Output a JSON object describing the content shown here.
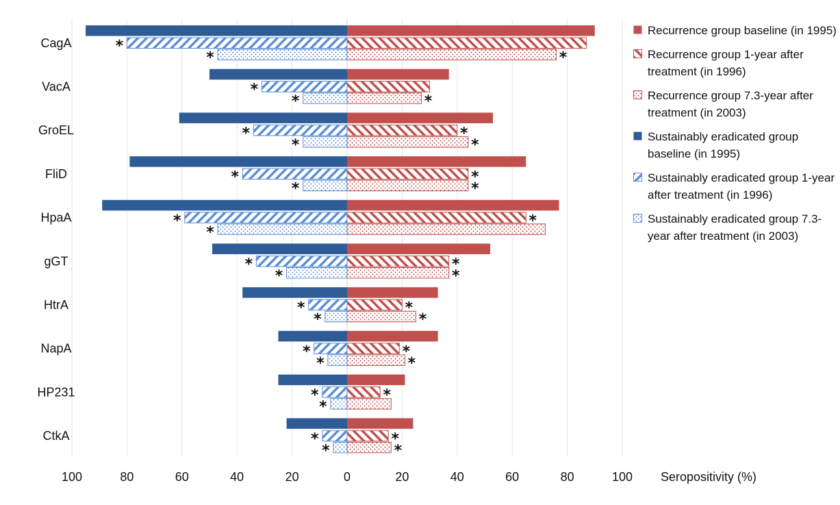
{
  "chart_data": {
    "type": "bar",
    "orientation": "horizontal-diverging",
    "categories": [
      "CagA",
      "VacA",
      "GroEL",
      "FliD",
      "HpaA",
      "gGT",
      "HtrA",
      "NapA",
      "HP231",
      "CtkA"
    ],
    "xlabel": "Seropositivity (%)",
    "xlim": [
      -100,
      100
    ],
    "ticks": [
      100,
      80,
      60,
      40,
      20,
      0,
      20,
      40,
      60,
      80,
      100
    ],
    "legend_position": "right",
    "grid": true,
    "series": [
      {
        "name": "Recurrence group baseline (in 1995)",
        "side": "right",
        "pattern": "solid",
        "color": "#c0504d",
        "values": [
          90,
          37,
          53,
          65,
          77,
          52,
          33,
          33,
          21,
          24
        ],
        "significant": [
          false,
          false,
          false,
          false,
          false,
          false,
          false,
          false,
          false,
          false
        ]
      },
      {
        "name": "Recurrence group 1-year after treatment (in 1996)",
        "side": "right",
        "pattern": "hatch",
        "color": "#c0504d",
        "values": [
          87,
          30,
          40,
          44,
          65,
          37,
          20,
          19,
          12,
          15
        ],
        "significant": [
          false,
          false,
          true,
          true,
          true,
          true,
          true,
          true,
          true,
          true
        ]
      },
      {
        "name": "Recurrence group 7.3-year after treatment (in 2003)",
        "side": "right",
        "pattern": "dots",
        "color": "#c0504d",
        "values": [
          76,
          27,
          44,
          44,
          72,
          37,
          25,
          21,
          16,
          16
        ],
        "significant": [
          true,
          true,
          true,
          true,
          false,
          true,
          true,
          true,
          false,
          true
        ]
      },
      {
        "name": "Sustainably eradicated group baseline (in 1995)",
        "side": "left",
        "pattern": "solid",
        "color": "#2f5c96",
        "values": [
          95,
          50,
          61,
          79,
          89,
          49,
          38,
          25,
          25,
          22
        ],
        "significant": [
          false,
          false,
          false,
          false,
          false,
          false,
          false,
          false,
          false,
          false
        ]
      },
      {
        "name": "Sustainably eradicated group 1-year after treatment (in 1996)",
        "side": "left",
        "pattern": "hatch",
        "color": "#5b8ed6",
        "values": [
          80,
          31,
          34,
          38,
          59,
          33,
          14,
          12,
          9,
          9
        ],
        "significant": [
          true,
          true,
          true,
          true,
          true,
          true,
          true,
          true,
          true,
          true
        ]
      },
      {
        "name": "Sustainably eradicated group 7.3-year after treatment (in 2003)",
        "side": "left",
        "pattern": "dots",
        "color": "#5b8ed6",
        "values": [
          47,
          16,
          16,
          16,
          47,
          22,
          8,
          7,
          6,
          5
        ],
        "significant": [
          true,
          true,
          true,
          true,
          true,
          true,
          true,
          true,
          true,
          true
        ]
      }
    ]
  }
}
